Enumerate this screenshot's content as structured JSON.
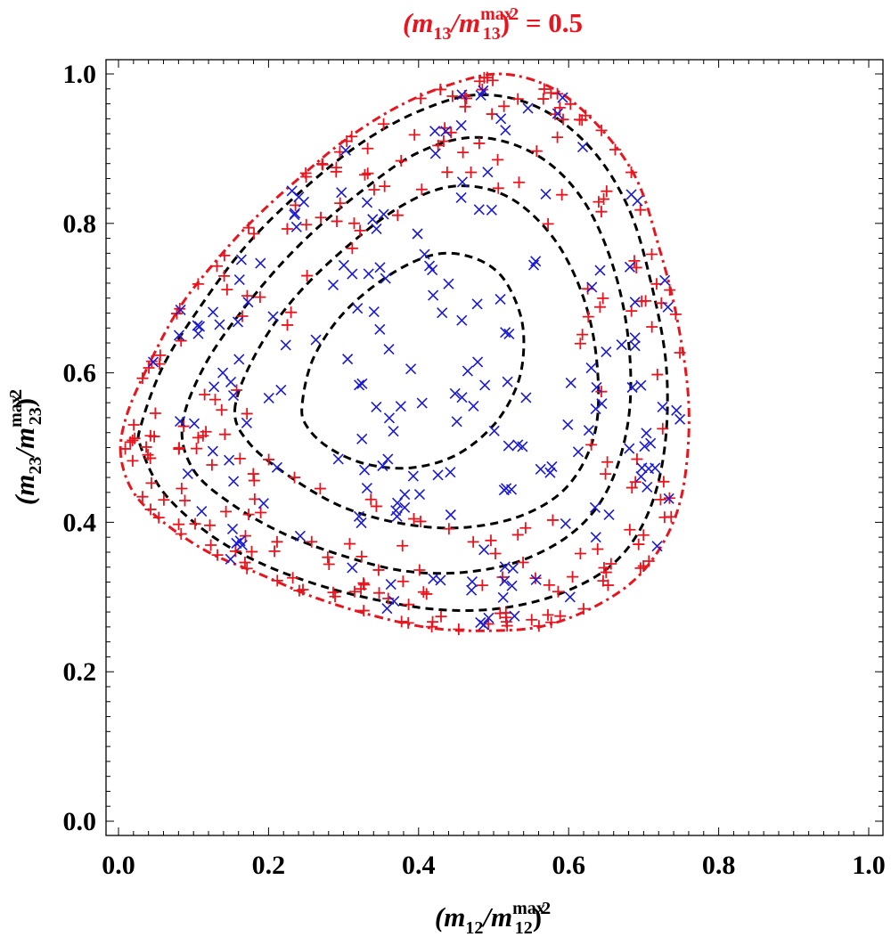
{
  "chart_data": {
    "type": "scatter",
    "title": {
      "prefix": "(m",
      "sub1": "13",
      "slash": "/m",
      "sup1": "max",
      "sub2": "13",
      "suffix": ")",
      "exp": "2",
      "value": " = 0.5"
    },
    "title_color": "#e8141e",
    "xlabel": {
      "prefix": "(m",
      "sub1": "12",
      "slash": "/m",
      "sup1": "max",
      "sub2": "12",
      "suffix": ")",
      "exp": "2"
    },
    "ylabel": {
      "prefix": "(m",
      "sub1": "23",
      "slash": "/m",
      "sup1": "max",
      "sub2": "23",
      "suffix": ")",
      "exp": "2"
    },
    "xlim": [
      0,
      1
    ],
    "ylim": [
      0,
      1
    ],
    "xticks": [
      "0.0",
      "0.2",
      "0.4",
      "0.6",
      "0.8",
      "1.0"
    ],
    "yticks": [
      "0.0",
      "0.2",
      "0.4",
      "0.6",
      "0.8",
      "1.0"
    ],
    "grid": false,
    "colors": {
      "plus": "#e8141e",
      "cross": "#1a1ad6",
      "contour": "#000000",
      "boundary": "#e8141e"
    },
    "boundary": {
      "name": "dalitz-boundary",
      "style": "dash-dot",
      "points": [
        [
          0.003,
          0.49
        ],
        [
          0.01,
          0.54
        ],
        [
          0.035,
          0.6
        ],
        [
          0.08,
          0.685
        ],
        [
          0.13,
          0.75
        ],
        [
          0.18,
          0.805
        ],
        [
          0.24,
          0.86
        ],
        [
          0.3,
          0.91
        ],
        [
          0.37,
          0.955
        ],
        [
          0.44,
          0.985
        ],
        [
          0.51,
          1.0
        ],
        [
          0.58,
          0.98
        ],
        [
          0.64,
          0.93
        ],
        [
          0.69,
          0.86
        ],
        [
          0.72,
          0.77
        ],
        [
          0.745,
          0.67
        ],
        [
          0.76,
          0.56
        ],
        [
          0.755,
          0.46
        ],
        [
          0.735,
          0.39
        ],
        [
          0.695,
          0.33
        ],
        [
          0.64,
          0.29
        ],
        [
          0.57,
          0.262
        ],
        [
          0.5,
          0.255
        ],
        [
          0.42,
          0.258
        ],
        [
          0.34,
          0.275
        ],
        [
          0.26,
          0.3
        ],
        [
          0.19,
          0.33
        ],
        [
          0.12,
          0.36
        ],
        [
          0.06,
          0.4
        ],
        [
          0.02,
          0.44
        ],
        [
          0.003,
          0.49
        ]
      ]
    },
    "contours": [
      {
        "name": "contour-1",
        "cx": 0.435,
        "cy": 0.62,
        "rx": 0.41,
        "ry": 0.355,
        "points": [
          [
            0.03,
            0.53
          ],
          [
            0.06,
            0.61
          ],
          [
            0.11,
            0.69
          ],
          [
            0.17,
            0.77
          ],
          [
            0.24,
            0.84
          ],
          [
            0.32,
            0.905
          ],
          [
            0.4,
            0.95
          ],
          [
            0.48,
            0.972
          ],
          [
            0.56,
            0.955
          ],
          [
            0.63,
            0.9
          ],
          [
            0.68,
            0.82
          ],
          [
            0.71,
            0.72
          ],
          [
            0.73,
            0.61
          ],
          [
            0.728,
            0.5
          ],
          [
            0.705,
            0.41
          ],
          [
            0.66,
            0.345
          ],
          [
            0.59,
            0.305
          ],
          [
            0.51,
            0.285
          ],
          [
            0.43,
            0.283
          ],
          [
            0.35,
            0.295
          ],
          [
            0.27,
            0.315
          ],
          [
            0.19,
            0.345
          ],
          [
            0.12,
            0.385
          ],
          [
            0.06,
            0.44
          ],
          [
            0.03,
            0.5
          ],
          [
            0.03,
            0.53
          ]
        ]
      },
      {
        "name": "contour-2",
        "points": [
          [
            0.085,
            0.53
          ],
          [
            0.115,
            0.61
          ],
          [
            0.17,
            0.69
          ],
          [
            0.24,
            0.77
          ],
          [
            0.32,
            0.84
          ],
          [
            0.4,
            0.895
          ],
          [
            0.48,
            0.915
          ],
          [
            0.56,
            0.89
          ],
          [
            0.62,
            0.83
          ],
          [
            0.66,
            0.74
          ],
          [
            0.68,
            0.64
          ],
          [
            0.68,
            0.54
          ],
          [
            0.655,
            0.45
          ],
          [
            0.61,
            0.39
          ],
          [
            0.54,
            0.35
          ],
          [
            0.46,
            0.333
          ],
          [
            0.38,
            0.335
          ],
          [
            0.3,
            0.355
          ],
          [
            0.22,
            0.385
          ],
          [
            0.15,
            0.425
          ],
          [
            0.1,
            0.47
          ],
          [
            0.085,
            0.53
          ]
        ]
      },
      {
        "name": "contour-3",
        "points": [
          [
            0.155,
            0.55
          ],
          [
            0.18,
            0.62
          ],
          [
            0.23,
            0.695
          ],
          [
            0.3,
            0.765
          ],
          [
            0.38,
            0.825
          ],
          [
            0.45,
            0.85
          ],
          [
            0.52,
            0.835
          ],
          [
            0.58,
            0.78
          ],
          [
            0.62,
            0.7
          ],
          [
            0.638,
            0.61
          ],
          [
            0.635,
            0.52
          ],
          [
            0.6,
            0.45
          ],
          [
            0.54,
            0.41
          ],
          [
            0.46,
            0.393
          ],
          [
            0.38,
            0.398
          ],
          [
            0.3,
            0.42
          ],
          [
            0.23,
            0.46
          ],
          [
            0.175,
            0.505
          ],
          [
            0.155,
            0.55
          ]
        ]
      },
      {
        "name": "contour-4",
        "points": [
          [
            0.245,
            0.56
          ],
          [
            0.26,
            0.62
          ],
          [
            0.3,
            0.68
          ],
          [
            0.36,
            0.73
          ],
          [
            0.42,
            0.758
          ],
          [
            0.47,
            0.755
          ],
          [
            0.51,
            0.73
          ],
          [
            0.535,
            0.68
          ],
          [
            0.54,
            0.63
          ],
          [
            0.53,
            0.58
          ],
          [
            0.5,
            0.53
          ],
          [
            0.45,
            0.49
          ],
          [
            0.39,
            0.473
          ],
          [
            0.33,
            0.478
          ],
          [
            0.28,
            0.5
          ],
          [
            0.25,
            0.53
          ],
          [
            0.245,
            0.56
          ]
        ]
      }
    ],
    "series": [
      {
        "name": "plus-markers",
        "marker": "+",
        "count": 260
      },
      {
        "name": "cross-markers",
        "marker": "x",
        "count": 200
      }
    ]
  }
}
